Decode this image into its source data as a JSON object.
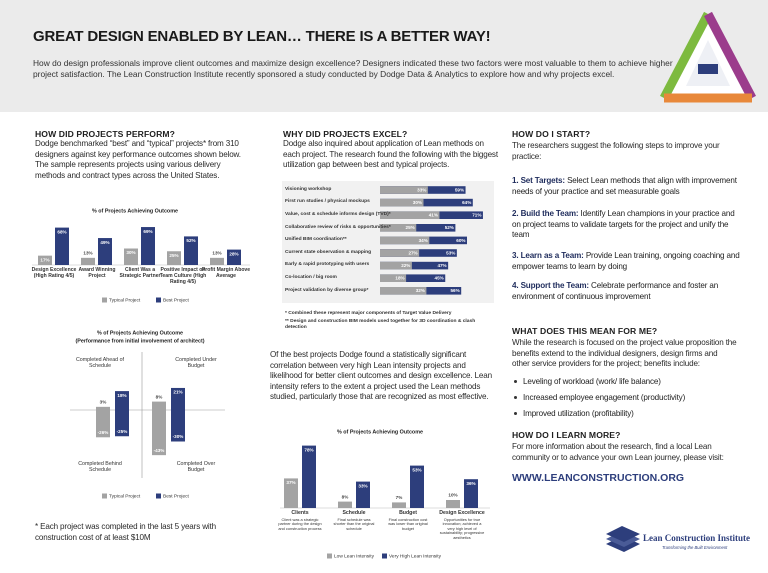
{
  "header": {
    "title": "GREAT DESIGN ENABLED BY LEAN… THERE IS A BETTER WAY!",
    "intro": "How do design professionals improve client outcomes and maximize design excellence? Designers indicated these two factors were most valuable to them to achieve higher project satisfaction. The Lean Construction Institute recently sponsored a study conducted by Dodge Data & Analytics to explore how and why projects excel."
  },
  "col1": {
    "heading": "HOW DID PROJECTS PERFORM?",
    "text": "Dodge benchmarked “best” and “typical” projects* from 310 designers against key performance outcomes shown below. The sample represents projects using various delivery methods and contract types across the United States.",
    "chart": {
      "type": "bar",
      "title": "% of Projects Achieving Outcome",
      "categories": [
        "Design Excellence (High Rating 4/5)",
        "Award Winning Project",
        "Client Was a Strategic Partner",
        "Positive Impact on Team Culture (High Rating 4/5)",
        "Profit Margin Above Average"
      ],
      "series": [
        {
          "name": "Typical Project",
          "color": "#a3a3a3",
          "values": [
            17,
            13,
            30,
            25,
            13
          ],
          "value_labels": [
            "17%",
            "13%",
            "30%",
            "25%",
            "13%"
          ]
        },
        {
          "name": "Best Project",
          "color": "#2d3e7c",
          "values": [
            68,
            49,
            69,
            52,
            28
          ],
          "value_labels": [
            "68%",
            "49%",
            "69%",
            "52%",
            "28%"
          ]
        }
      ]
    },
    "chart2": {
      "type": "bar",
      "title": "% of Projects Achieving Outcome",
      "subtitle": "(Performance from initial involvement of architect)",
      "positive_labels": [
        "Completed Ahead of Schedule",
        "Completed Under Budget"
      ],
      "negative_labels": [
        "Completed Behind Schedule",
        "Completed Over Budget"
      ],
      "series": [
        {
          "name": "Typical Project",
          "color": "#a3a3a3",
          "positive": [
            3,
            8
          ],
          "positive_labels": [
            "3%",
            "8%"
          ],
          "negative": [
            -26,
            -43
          ],
          "negative_labels": [
            "-26%",
            "-43%"
          ]
        },
        {
          "name": "Best Project",
          "color": "#2d3e7c",
          "positive": [
            18,
            21
          ],
          "positive_labels": [
            "18%",
            "21%"
          ],
          "negative": [
            -25,
            -30
          ],
          "negative_labels": [
            "-25%",
            "-30%"
          ]
        }
      ]
    },
    "footnote": "* Each project was completed in the last 5 years with construction cost of at least $10M"
  },
  "col2": {
    "heading": "WHY DID PROJECTS EXCEL?",
    "text": "Dodge also inquired about application of Lean methods on each project. The research found the following with the biggest utilization gap between best and typical projects.",
    "chart": {
      "type": "bar",
      "orientation": "horizontal",
      "categories": [
        "Visioning workshop",
        "First run studies / physical mockups",
        "Value, cost & schedule informs design (TVD)*",
        "Collaborative review of risks & opportunities*",
        "Unified BIM coordination**",
        "Current state observation & mapping",
        "Early & rapid prototyping with users",
        "Co-location / big room",
        "Project validation by diverse group*"
      ],
      "series": [
        {
          "color": "#a3a3a3",
          "values": [
            33,
            30,
            41,
            25,
            34,
            27,
            22,
            18,
            32
          ],
          "value_labels": [
            "33%",
            "30%",
            "41%",
            "25%",
            "34%",
            "27%",
            "22%",
            "18%",
            "32%"
          ]
        },
        {
          "color": "#2d3e7c",
          "values": [
            59,
            64,
            71,
            52,
            60,
            53,
            47,
            45,
            56
          ],
          "value_labels": [
            "59%",
            "64%",
            "71%",
            "52%",
            "60%",
            "53%",
            "47%",
            "45%",
            "56%"
          ]
        }
      ]
    },
    "notes": [
      "*  Combined these represent major components of Target Value Delivery",
      "**  Design and construction BIM models used together for 3D coordination & clash detection"
    ],
    "text2": "Of the best projects Dodge found a statistically significant correlation between very high Lean intensity projects and likelihood for better client outcomes and design excellence. Lean intensity refers to the extent a project used the Lean methods studied, particularly those that are recognized as most effective.",
    "chart2": {
      "type": "bar",
      "title": "% of Projects Achieving Outcome",
      "categories": [
        "Clients",
        "Schedule",
        "Budget",
        "Design Excellence"
      ],
      "descriptions": [
        "Client was a strategic partner during the design and construction process",
        "Final schedule was shorter than the original schedule",
        "Final construction cost was lower than original budget",
        "Opportunities for true innovation; achieved a very high level of sustainability; progressive aesthetics"
      ],
      "series": [
        {
          "name": "Low Lean Intensity",
          "color": "#a3a3a3",
          "values": [
            37,
            8,
            7,
            10
          ],
          "value_labels": [
            "37%",
            "8%",
            "7%",
            "10%"
          ]
        },
        {
          "name": "Very High Lean Intensity",
          "color": "#2d3e7c",
          "values": [
            78,
            33,
            53,
            36
          ],
          "value_labels": [
            "78%",
            "33%",
            "53%",
            "36%"
          ]
        }
      ]
    }
  },
  "col3": {
    "heading": "HOW DO I START?",
    "text": "The researchers suggest the following steps to improve your practice:",
    "steps": [
      {
        "number": "1.",
        "label": "Set Targets:",
        "text": "Select Lean methods that align with improvement needs of your practice and set measurable goals"
      },
      {
        "number": "2.",
        "label": "Build the Team:",
        "text": "Identify Lean champions in your practice and on project teams to validate targets for the project and unify the team"
      },
      {
        "number": "3.",
        "label": "Learn as a Team:",
        "text": "Provide Lean training, ongoing coaching and empower teams to learn by doing"
      },
      {
        "number": "4.",
        "label": "Support the Team:",
        "text": "Celebrate performance and foster an environment of continuous improvement"
      }
    ],
    "heading2": "WHAT DOES THIS MEAN FOR ME?",
    "text2": "While the research is focused on the project value proposition the benefits extend to the individual designers, design firms and other service providers for the project; benefits include:",
    "benefits": [
      "Leveling of workload (work/ life balance)",
      "Increased employee engagement (productivity)",
      "Improved utilization (profitability)"
    ],
    "heading3": "HOW DO I LEARN MORE?",
    "text3": "For more information about the research, find a local Lean community or to advance your own Lean journey, please visit:",
    "url": "WWW.LEANCONSTRUCTION.ORG"
  },
  "logo": {
    "name": "Lean Construction Institute",
    "tagline": "Transforming the Built Environment"
  }
}
